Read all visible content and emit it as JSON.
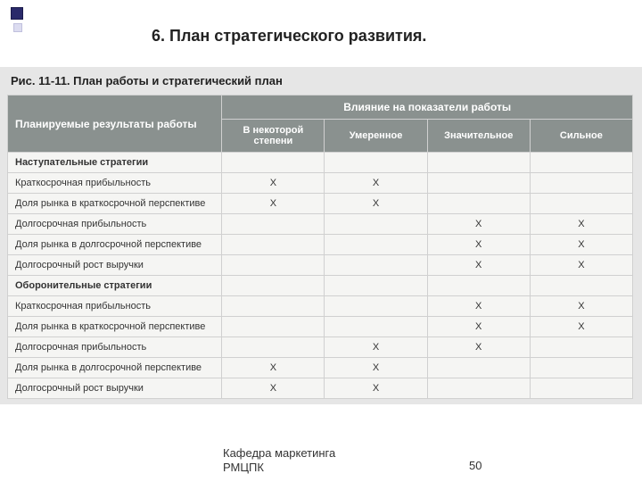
{
  "title": "6. План стратегического развития.",
  "figure_caption": "Рис. 11-11. План работы и стратегический план",
  "header": {
    "left": "Планируемые результаты работы",
    "group": "Влияние на показатели работы",
    "cols": [
      "В некоторой степени",
      "Умеренное",
      "Значительное",
      "Сильное"
    ]
  },
  "sections": [
    {
      "title": "Наступательные стратегии",
      "rows": [
        {
          "label": "Краткосрочная прибыльность",
          "marks": [
            "X",
            "X",
            "",
            ""
          ]
        },
        {
          "label": "Доля рынка в краткосрочной перспективе",
          "marks": [
            "X",
            "X",
            "",
            ""
          ]
        },
        {
          "label": "Долгосрочная прибыльность",
          "marks": [
            "",
            "",
            "X",
            "X"
          ]
        },
        {
          "label": "Доля рынка в долгосрочной перспективе",
          "marks": [
            "",
            "",
            "X",
            "X"
          ]
        },
        {
          "label": "Долгосрочный рост выручки",
          "marks": [
            "",
            "",
            "X",
            "X"
          ]
        }
      ]
    },
    {
      "title": "Оборонительные стратегии",
      "rows": [
        {
          "label": "Краткосрочная прибыльность",
          "marks": [
            "",
            "",
            "X",
            "X"
          ]
        },
        {
          "label": "Доля рынка в краткосрочной перспективе",
          "marks": [
            "",
            "",
            "X",
            "X"
          ]
        },
        {
          "label": "Долгосрочная прибыльность",
          "marks": [
            "",
            "X",
            "X",
            ""
          ]
        },
        {
          "label": "Доля рынка в долгосрочной перспективе",
          "marks": [
            "X",
            "X",
            "",
            ""
          ]
        },
        {
          "label": "Долгосрочный рост выручки",
          "marks": [
            "X",
            "X",
            "",
            ""
          ]
        }
      ]
    }
  ],
  "footer_line1": "Кафедра маркетинга",
  "footer_line2": "РМЦПК",
  "page_number": "50"
}
